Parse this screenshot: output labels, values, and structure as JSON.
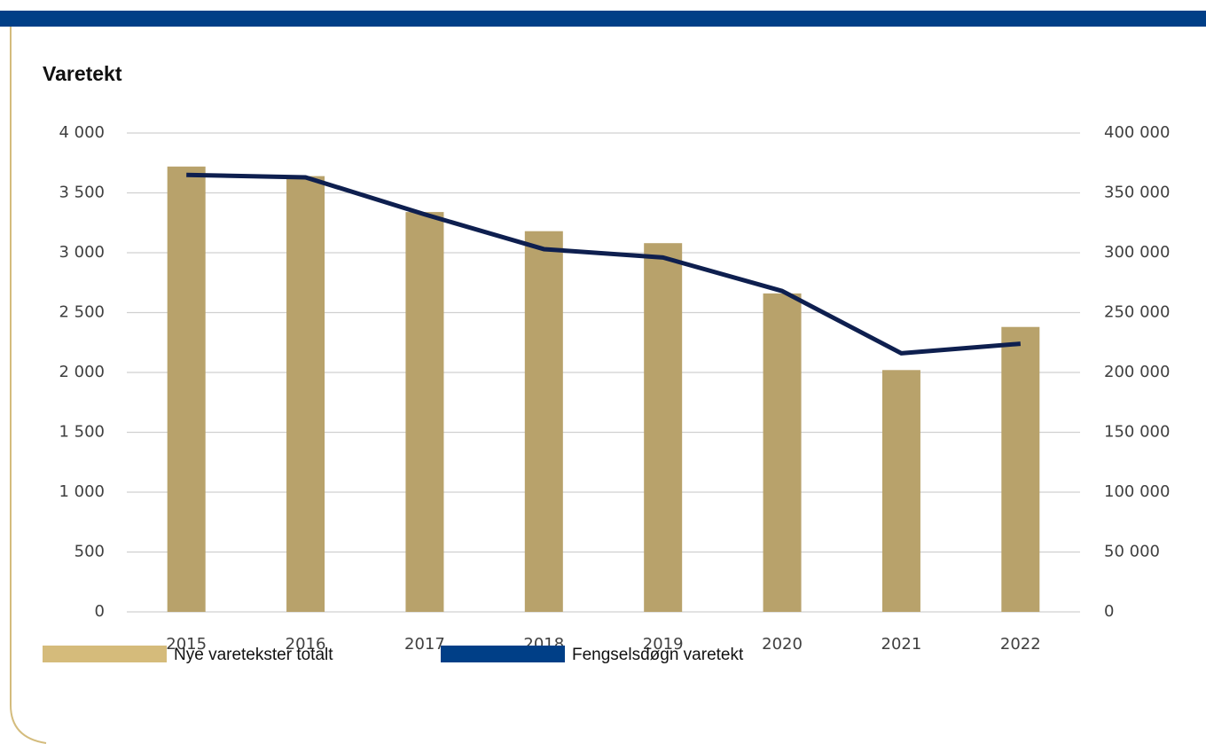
{
  "chart_data": {
    "type": "bar_line",
    "title": "Varetekt",
    "categories": [
      "2015",
      "2016",
      "2017",
      "2018",
      "2019",
      "2020",
      "2021",
      "2022"
    ],
    "series": [
      {
        "name": "Nye varetekster totalt",
        "type": "bar",
        "color": "#b8a26b",
        "legend_color": "#d5bb7b",
        "values": [
          3720,
          3640,
          3340,
          3180,
          3080,
          2660,
          2020,
          2380
        ]
      },
      {
        "name": "Fengselsdøgn varetekt",
        "type": "line",
        "axis": "y2",
        "color": "#0e1f4f",
        "legend_color": "#003f87",
        "values": [
          365000,
          363000,
          332000,
          303000,
          296000,
          268000,
          216000,
          224000
        ]
      }
    ],
    "ylim": [
      0,
      4000
    ],
    "yticks": [
      0,
      500,
      {
        "value": 1000,
        "label": "1 000"
      },
      {
        "value": 1500,
        "label": "1 500"
      },
      {
        "value": 2000,
        "label": "2 000"
      },
      {
        "value": 2500,
        "label": "2 500"
      },
      {
        "value": 3000,
        "label": "3 000"
      },
      {
        "value": 3500,
        "label": "3 500"
      },
      {
        "value": 4000,
        "label": "4 000"
      }
    ],
    "y2lim": [
      0,
      400000
    ],
    "y2ticks": [
      0,
      {
        "value": 50000,
        "label": "50 000"
      },
      {
        "value": 100000,
        "label": "100 000"
      },
      {
        "value": 150000,
        "label": "150 000"
      },
      {
        "value": 200000,
        "label": "200 000"
      },
      {
        "value": 250000,
        "label": "250 000"
      },
      {
        "value": 300000,
        "label": "300 000"
      },
      {
        "value": 350000,
        "label": "350 000"
      },
      {
        "value": 400000,
        "label": "400 000"
      }
    ],
    "grid": true
  }
}
